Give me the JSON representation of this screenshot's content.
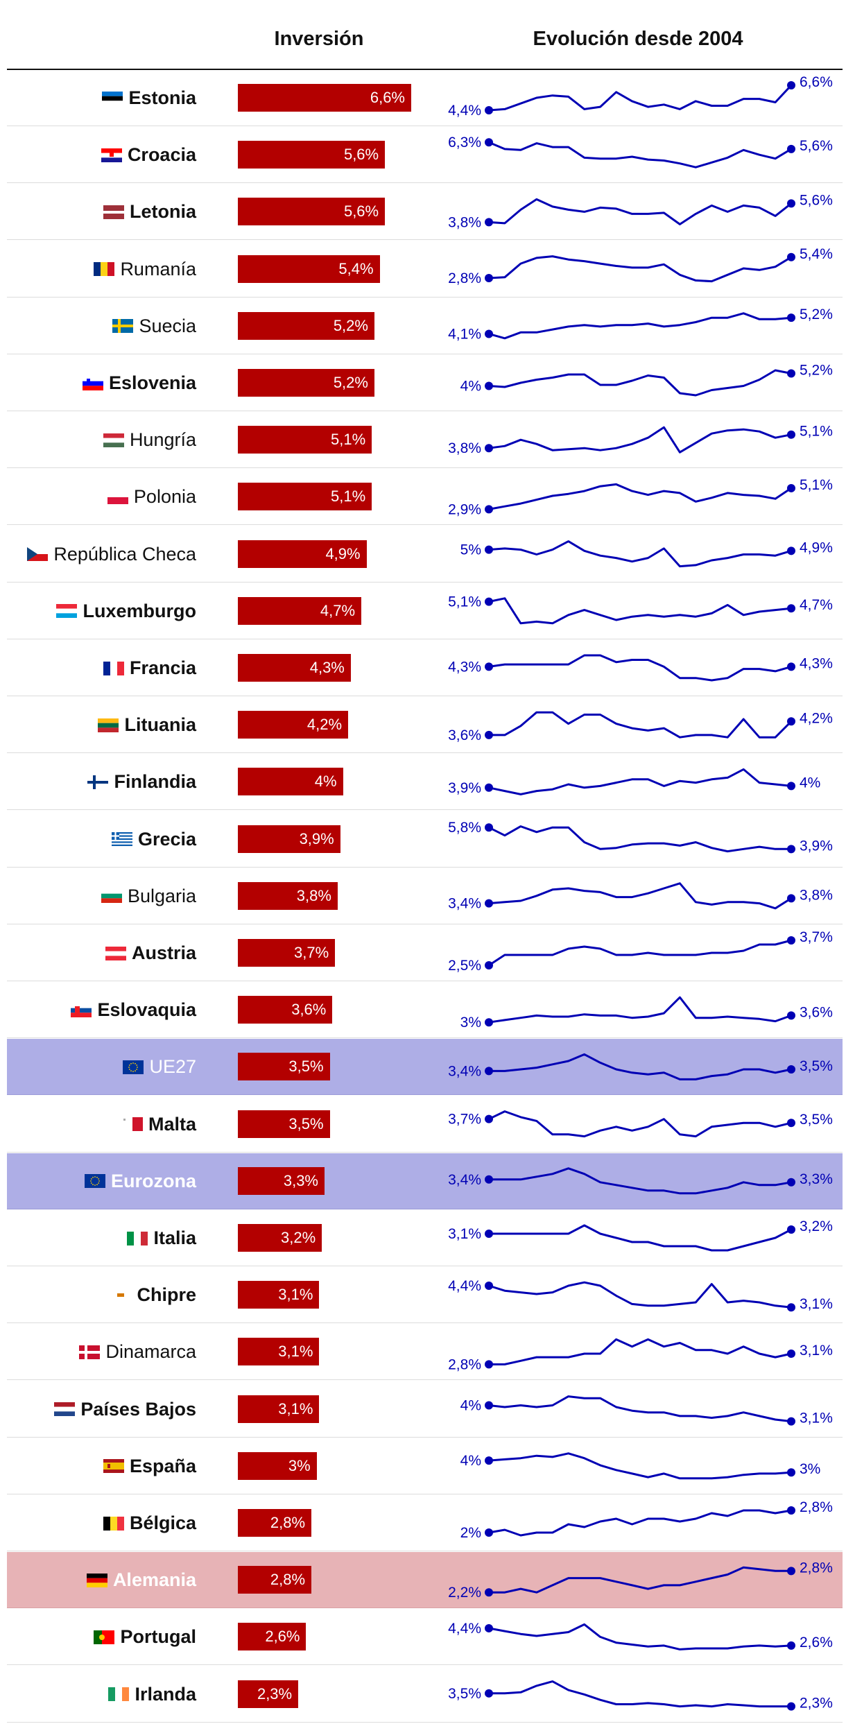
{
  "chart_data": {
    "type": "bar",
    "headers": {
      "investment": "Inversión",
      "evolution": "Evolución desde 2004"
    },
    "rows": [
      {
        "country": "Estonia",
        "value": 6.6,
        "label": "6,6%",
        "start_label": "4,4%",
        "end_label": "6,6%",
        "bold": true,
        "highlight": "",
        "flag": "ee",
        "trend": [
          4.4,
          4.5,
          5.0,
          5.5,
          5.7,
          5.6,
          4.5,
          4.7,
          6.0,
          5.2,
          4.7,
          4.9,
          4.5,
          5.2,
          4.8,
          4.8,
          5.4,
          5.4,
          5.1,
          6.6
        ]
      },
      {
        "country": "Croacia",
        "value": 5.6,
        "label": "5,6%",
        "start_label": "6,3%",
        "end_label": "5,6%",
        "bold": true,
        "highlight": "",
        "flag": "hr",
        "trend": [
          6.3,
          5.6,
          5.5,
          6.2,
          5.8,
          5.8,
          4.7,
          4.6,
          4.6,
          4.8,
          4.5,
          4.4,
          4.1,
          3.7,
          4.2,
          4.7,
          5.5,
          5.0,
          4.6,
          5.6
        ]
      },
      {
        "country": "Letonia",
        "value": 5.6,
        "label": "5,6%",
        "start_label": "3,8%",
        "end_label": "5,6%",
        "bold": true,
        "highlight": "",
        "flag": "lv",
        "trend": [
          3.8,
          3.7,
          5.0,
          6.0,
          5.3,
          5.0,
          4.8,
          5.2,
          5.1,
          4.6,
          4.6,
          4.7,
          3.6,
          4.6,
          5.4,
          4.8,
          5.4,
          5.2,
          4.4,
          5.6
        ]
      },
      {
        "country": "Rumanía",
        "value": 5.4,
        "label": "5,4%",
        "start_label": "2,8%",
        "end_label": "5,4%",
        "bold": false,
        "highlight": "",
        "flag": "ro",
        "trend": [
          2.8,
          2.9,
          4.6,
          5.3,
          5.5,
          5.1,
          4.9,
          4.6,
          4.3,
          4.1,
          4.1,
          4.5,
          3.2,
          2.5,
          2.4,
          3.2,
          4.0,
          3.8,
          4.2,
          5.4
        ]
      },
      {
        "country": "Suecia",
        "value": 5.2,
        "label": "5,2%",
        "start_label": "4,1%",
        "end_label": "5,2%",
        "bold": false,
        "highlight": "",
        "flag": "se",
        "trend": [
          4.1,
          3.8,
          4.2,
          4.2,
          4.4,
          4.6,
          4.7,
          4.6,
          4.7,
          4.7,
          4.8,
          4.6,
          4.7,
          4.9,
          5.2,
          5.2,
          5.5,
          5.1,
          5.1,
          5.2
        ]
      },
      {
        "country": "Eslovenia",
        "value": 5.2,
        "label": "5,2%",
        "start_label": "4%",
        "end_label": "5,2%",
        "bold": true,
        "highlight": "",
        "flag": "si",
        "trend": [
          4.0,
          3.9,
          4.3,
          4.6,
          4.8,
          5.1,
          5.1,
          4.1,
          4.1,
          4.5,
          5.0,
          4.8,
          3.3,
          3.1,
          3.6,
          3.8,
          4.0,
          4.6,
          5.5,
          5.2
        ]
      },
      {
        "country": "Hungría",
        "value": 5.1,
        "label": "5,1%",
        "start_label": "3,8%",
        "end_label": "5,1%",
        "bold": false,
        "highlight": "",
        "flag": "hu",
        "trend": [
          3.8,
          4.0,
          4.6,
          4.2,
          3.6,
          3.7,
          3.8,
          3.6,
          3.8,
          4.2,
          4.8,
          5.8,
          3.4,
          4.3,
          5.2,
          5.5,
          5.6,
          5.4,
          4.8,
          5.1
        ]
      },
      {
        "country": "Polonia",
        "value": 5.1,
        "label": "5,1%",
        "start_label": "2,9%",
        "end_label": "5,1%",
        "bold": false,
        "highlight": "",
        "flag": "pl",
        "trend": [
          2.9,
          3.2,
          3.5,
          3.9,
          4.3,
          4.5,
          4.8,
          5.3,
          5.5,
          4.8,
          4.4,
          4.8,
          4.6,
          3.7,
          4.1,
          4.6,
          4.4,
          4.3,
          4.0,
          5.1
        ]
      },
      {
        "country": "República Checa",
        "value": 4.9,
        "label": "4,9%",
        "start_label": "5%",
        "end_label": "4,9%",
        "bold": false,
        "highlight": "",
        "flag": "cz",
        "trend": [
          5.0,
          5.1,
          5.0,
          4.6,
          5.0,
          5.7,
          4.9,
          4.5,
          4.3,
          4.0,
          4.3,
          5.1,
          3.6,
          3.7,
          4.1,
          4.3,
          4.6,
          4.6,
          4.5,
          4.9
        ]
      },
      {
        "country": "Luxemburgo",
        "value": 4.7,
        "label": "4,7%",
        "start_label": "5,1%",
        "end_label": "4,7%",
        "bold": true,
        "highlight": "",
        "flag": "lu",
        "trend": [
          5.1,
          5.3,
          3.8,
          3.9,
          3.8,
          4.3,
          4.6,
          4.3,
          4.0,
          4.2,
          4.3,
          4.2,
          4.3,
          4.2,
          4.4,
          4.9,
          4.3,
          4.5,
          4.6,
          4.7
        ]
      },
      {
        "country": "Francia",
        "value": 4.3,
        "label": "4,3%",
        "start_label": "4,3%",
        "end_label": "4,3%",
        "bold": true,
        "highlight": "",
        "flag": "fr",
        "trend": [
          4.3,
          4.4,
          4.4,
          4.4,
          4.4,
          4.4,
          4.8,
          4.8,
          4.5,
          4.6,
          4.6,
          4.3,
          3.8,
          3.8,
          3.7,
          3.8,
          4.2,
          4.2,
          4.1,
          4.3
        ]
      },
      {
        "country": "Lituania",
        "value": 4.2,
        "label": "4,2%",
        "start_label": "3,6%",
        "end_label": "4,2%",
        "bold": true,
        "highlight": "",
        "flag": "lt",
        "trend": [
          3.6,
          3.6,
          4.0,
          4.6,
          4.6,
          4.1,
          4.5,
          4.5,
          4.1,
          3.9,
          3.8,
          3.9,
          3.5,
          3.6,
          3.6,
          3.5,
          4.3,
          3.5,
          3.5,
          4.2
        ]
      },
      {
        "country": "Finlandia",
        "value": 4,
        "label": "4%",
        "start_label": "3,9%",
        "end_label": "4%",
        "bold": true,
        "highlight": "",
        "flag": "fi",
        "trend": [
          3.9,
          3.7,
          3.5,
          3.7,
          3.8,
          4.1,
          3.9,
          4.0,
          4.2,
          4.4,
          4.4,
          4.0,
          4.3,
          4.2,
          4.4,
          4.5,
          5.0,
          4.2,
          4.1,
          4.0
        ]
      },
      {
        "country": "Grecia",
        "value": 3.9,
        "label": "3,9%",
        "start_label": "5,8%",
        "end_label": "3,9%",
        "bold": true,
        "highlight": "",
        "flag": "gr",
        "trend": [
          5.8,
          5.1,
          5.9,
          5.4,
          5.8,
          5.8,
          4.5,
          3.9,
          4.0,
          4.3,
          4.4,
          4.4,
          4.2,
          4.5,
          4.0,
          3.7,
          3.9,
          4.1,
          3.9,
          3.9
        ]
      },
      {
        "country": "Bulgaria",
        "value": 3.8,
        "label": "3,8%",
        "start_label": "3,4%",
        "end_label": "3,8%",
        "bold": false,
        "highlight": "",
        "flag": "bg",
        "trend": [
          3.4,
          3.5,
          3.6,
          4.0,
          4.5,
          4.6,
          4.4,
          4.3,
          3.9,
          3.9,
          4.2,
          4.6,
          5.0,
          3.5,
          3.3,
          3.5,
          3.5,
          3.4,
          3.0,
          3.8
        ]
      },
      {
        "country": "Austria",
        "value": 3.7,
        "label": "3,7%",
        "start_label": "2,5%",
        "end_label": "3,7%",
        "bold": true,
        "highlight": "",
        "flag": "at",
        "trend": [
          2.5,
          3.0,
          3.0,
          3.0,
          3.0,
          3.3,
          3.4,
          3.3,
          3.0,
          3.0,
          3.1,
          3.0,
          3.0,
          3.0,
          3.1,
          3.1,
          3.2,
          3.5,
          3.5,
          3.7
        ]
      },
      {
        "country": "Eslovaquia",
        "value": 3.6,
        "label": "3,6%",
        "start_label": "3%",
        "end_label": "3,6%",
        "bold": true,
        "highlight": "",
        "flag": "sk",
        "trend": [
          3.0,
          3.2,
          3.4,
          3.6,
          3.5,
          3.5,
          3.7,
          3.6,
          3.6,
          3.4,
          3.5,
          3.8,
          5.2,
          3.4,
          3.4,
          3.5,
          3.4,
          3.3,
          3.1,
          3.6
        ]
      },
      {
        "country": "UE27",
        "value": 3.5,
        "label": "3,5%",
        "start_label": "3,4%",
        "end_label": "3,5%",
        "bold": false,
        "highlight": "eu",
        "flag": "eu",
        "trend": [
          3.4,
          3.4,
          3.5,
          3.6,
          3.8,
          4.0,
          4.4,
          3.9,
          3.5,
          3.3,
          3.2,
          3.3,
          2.9,
          2.9,
          3.1,
          3.2,
          3.5,
          3.5,
          3.3,
          3.5
        ]
      },
      {
        "country": "Malta",
        "value": 3.5,
        "label": "3,5%",
        "start_label": "3,7%",
        "end_label": "3,5%",
        "bold": true,
        "highlight": "",
        "flag": "mt",
        "trend": [
          3.7,
          4.1,
          3.8,
          3.6,
          2.9,
          2.9,
          2.8,
          3.1,
          3.3,
          3.1,
          3.3,
          3.7,
          2.9,
          2.8,
          3.3,
          3.4,
          3.5,
          3.5,
          3.3,
          3.5
        ]
      },
      {
        "country": "Eurozona",
        "value": 3.3,
        "label": "3,3%",
        "start_label": "3,4%",
        "end_label": "3,3%",
        "bold": true,
        "highlight": "eu",
        "flag": "eu",
        "trend": [
          3.4,
          3.4,
          3.4,
          3.5,
          3.6,
          3.8,
          3.6,
          3.3,
          3.2,
          3.1,
          3.0,
          3.0,
          2.9,
          2.9,
          3.0,
          3.1,
          3.3,
          3.2,
          3.2,
          3.3
        ]
      },
      {
        "country": "Italia",
        "value": 3.2,
        "label": "3,2%",
        "start_label": "3,1%",
        "end_label": "3,2%",
        "bold": true,
        "highlight": "",
        "flag": "it",
        "trend": [
          3.1,
          3.1,
          3.1,
          3.1,
          3.1,
          3.1,
          3.3,
          3.1,
          3.0,
          2.9,
          2.9,
          2.8,
          2.8,
          2.8,
          2.7,
          2.7,
          2.8,
          2.9,
          3.0,
          3.2
        ]
      },
      {
        "country": "Chipre",
        "value": 3.1,
        "label": "3,1%",
        "start_label": "4,4%",
        "end_label": "3,1%",
        "bold": true,
        "highlight": "",
        "flag": "cy",
        "trend": [
          4.4,
          4.1,
          4.0,
          3.9,
          4.0,
          4.4,
          4.6,
          4.4,
          3.8,
          3.3,
          3.2,
          3.2,
          3.3,
          3.4,
          4.5,
          3.4,
          3.5,
          3.4,
          3.2,
          3.1
        ]
      },
      {
        "country": "Dinamarca",
        "value": 3.1,
        "label": "3,1%",
        "start_label": "2,8%",
        "end_label": "3,1%",
        "bold": false,
        "highlight": "",
        "flag": "dk",
        "trend": [
          2.8,
          2.8,
          2.9,
          3.0,
          3.0,
          3.0,
          3.1,
          3.1,
          3.5,
          3.3,
          3.5,
          3.3,
          3.4,
          3.2,
          3.2,
          3.1,
          3.3,
          3.1,
          3.0,
          3.1
        ]
      },
      {
        "country": "Países Bajos",
        "value": 3.1,
        "label": "3,1%",
        "start_label": "4%",
        "end_label": "3,1%",
        "bold": true,
        "highlight": "",
        "flag": "nl",
        "trend": [
          4.0,
          3.9,
          4.0,
          3.9,
          4.0,
          4.5,
          4.4,
          4.4,
          3.9,
          3.7,
          3.6,
          3.6,
          3.4,
          3.4,
          3.3,
          3.4,
          3.6,
          3.4,
          3.2,
          3.1
        ]
      },
      {
        "country": "España",
        "value": 3,
        "label": "3%",
        "start_label": "4%",
        "end_label": "3%",
        "bold": true,
        "highlight": "",
        "flag": "es",
        "trend": [
          4.0,
          4.1,
          4.2,
          4.4,
          4.3,
          4.6,
          4.2,
          3.6,
          3.2,
          2.9,
          2.6,
          2.9,
          2.5,
          2.5,
          2.5,
          2.6,
          2.8,
          2.9,
          2.9,
          3.0
        ]
      },
      {
        "country": "Bélgica",
        "value": 2.8,
        "label": "2,8%",
        "start_label": "2%",
        "end_label": "2,8%",
        "bold": true,
        "highlight": "",
        "flag": "be",
        "trend": [
          2.0,
          2.1,
          1.9,
          2.0,
          2.0,
          2.3,
          2.2,
          2.4,
          2.5,
          2.3,
          2.5,
          2.5,
          2.4,
          2.5,
          2.7,
          2.6,
          2.8,
          2.8,
          2.7,
          2.8
        ]
      },
      {
        "country": "Alemania",
        "value": 2.8,
        "label": "2,8%",
        "start_label": "2,2%",
        "end_label": "2,8%",
        "bold": true,
        "highlight": "de",
        "flag": "de",
        "trend": [
          2.2,
          2.2,
          2.3,
          2.2,
          2.4,
          2.6,
          2.6,
          2.6,
          2.5,
          2.4,
          2.3,
          2.4,
          2.4,
          2.5,
          2.6,
          2.7,
          2.9,
          2.85,
          2.8,
          2.8
        ]
      },
      {
        "country": "Portugal",
        "value": 2.6,
        "label": "2,6%",
        "start_label": "4,4%",
        "end_label": "2,6%",
        "bold": true,
        "highlight": "",
        "flag": "pt",
        "trend": [
          4.4,
          4.1,
          3.8,
          3.6,
          3.8,
          4.0,
          4.8,
          3.5,
          2.9,
          2.7,
          2.5,
          2.6,
          2.2,
          2.3,
          2.3,
          2.3,
          2.5,
          2.6,
          2.5,
          2.6
        ]
      },
      {
        "country": "Irlanda",
        "value": 2.3,
        "label": "2,3%",
        "start_label": "3,5%",
        "end_label": "2,3%",
        "bold": true,
        "highlight": "",
        "flag": "ie",
        "trend": [
          3.5,
          3.5,
          3.6,
          4.2,
          4.6,
          3.8,
          3.4,
          2.9,
          2.5,
          2.5,
          2.6,
          2.5,
          2.3,
          2.4,
          2.3,
          2.5,
          2.4,
          2.3,
          2.3,
          2.3
        ]
      }
    ],
    "value_max": 6.6
  },
  "colors": {
    "bar": "#b30000",
    "line": "#0000b4",
    "highlight_eu": "#aeaee6",
    "highlight_de": "#e7b3b6"
  }
}
